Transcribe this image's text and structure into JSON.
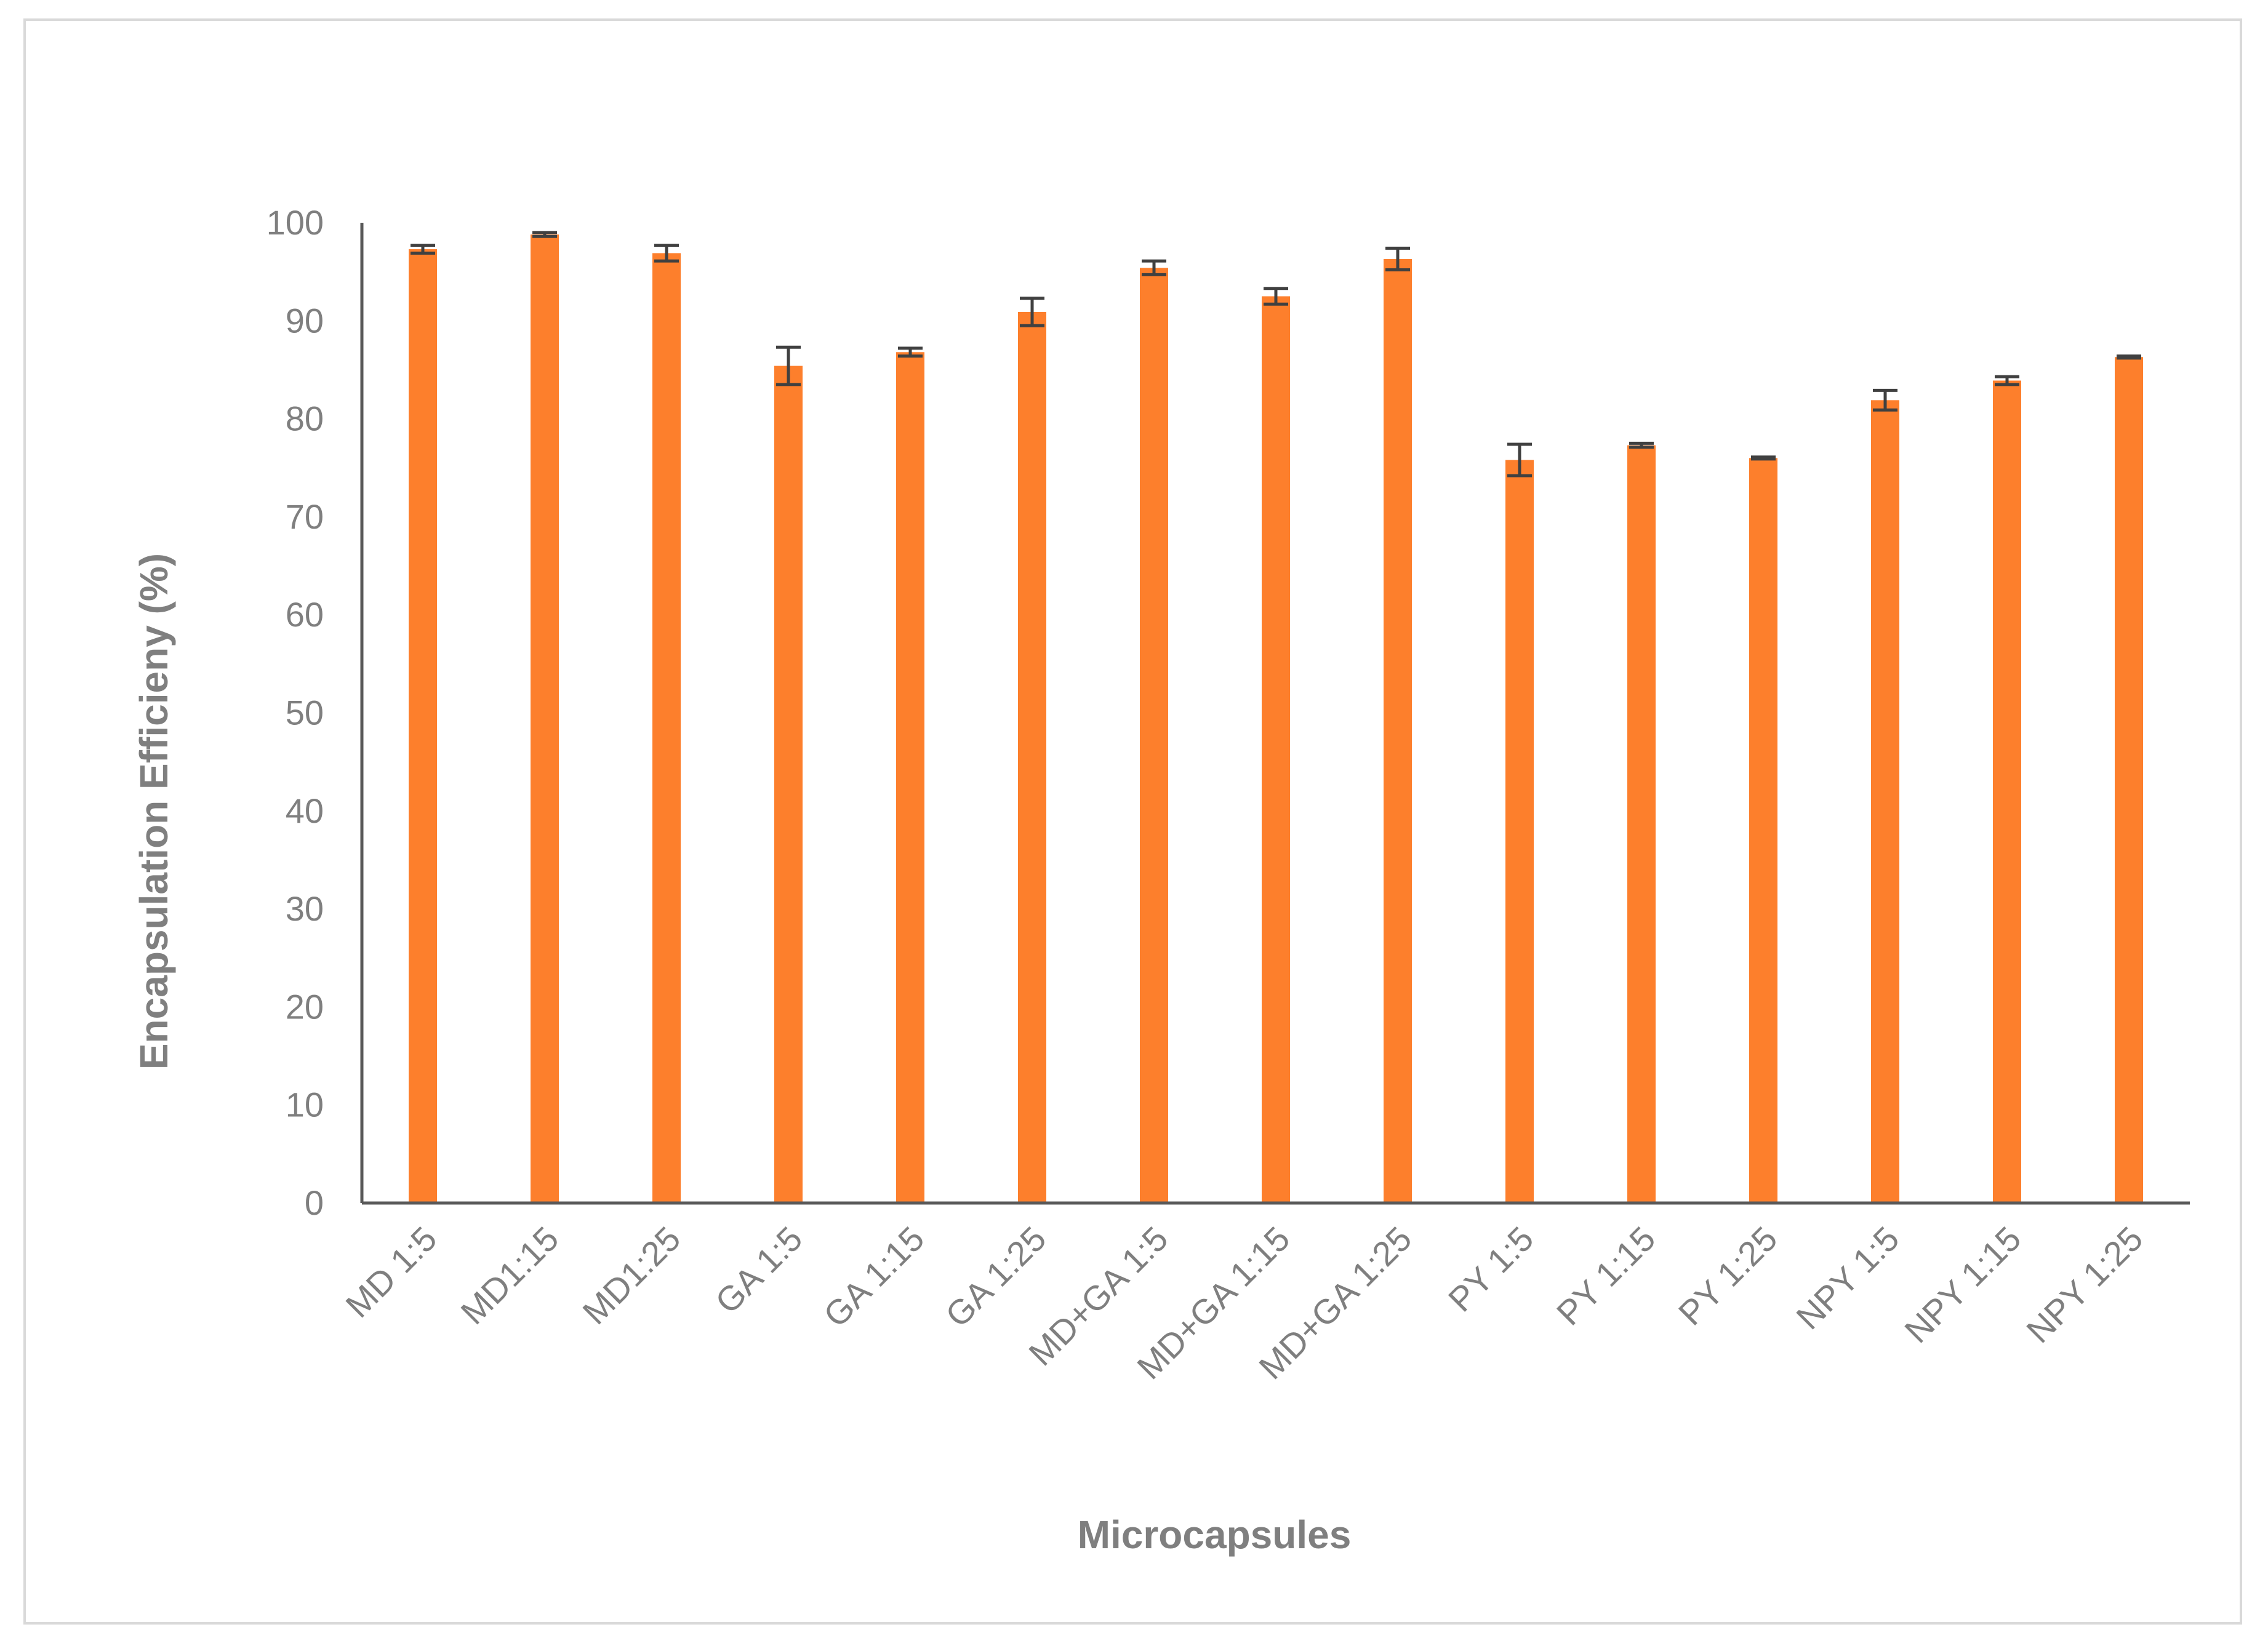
{
  "chart_data": {
    "type": "bar",
    "title": "",
    "xlabel": "Microcapsules",
    "ylabel": "Encapsulation Efficieny (%)",
    "ylim": [
      0,
      100
    ],
    "yticks": [
      "0",
      "10",
      "20",
      "30",
      "40",
      "50",
      "60",
      "70",
      "80",
      "90",
      "100"
    ],
    "grid": false,
    "legend": "none",
    "colors": {
      "bar": "#fd7f2c",
      "error": "#404040",
      "axis": "#595959",
      "text": "#7f7f7f"
    },
    "categories": [
      "MD 1:5",
      "MD1:15",
      "MD1:25",
      "GA 1:5",
      "GA 1:15",
      "GA 1:25",
      "MD+GA 1:5",
      "MD+GA 1:15",
      "MD+GA 1:25",
      "PY 1:5",
      "PY 1:15",
      "PY 1:25",
      "NPY 1:5",
      "NPY 1:15",
      "NPY 1:25"
    ],
    "values": [
      97.3,
      98.8,
      96.9,
      85.4,
      86.8,
      90.9,
      95.4,
      92.5,
      96.3,
      75.8,
      77.3,
      76.0,
      81.9,
      83.9,
      86.3
    ],
    "errors": [
      0.4,
      0.2,
      0.8,
      1.9,
      0.4,
      1.4,
      0.7,
      0.8,
      1.1,
      1.6,
      0.2,
      0.1,
      1.0,
      0.4,
      0.1
    ]
  }
}
